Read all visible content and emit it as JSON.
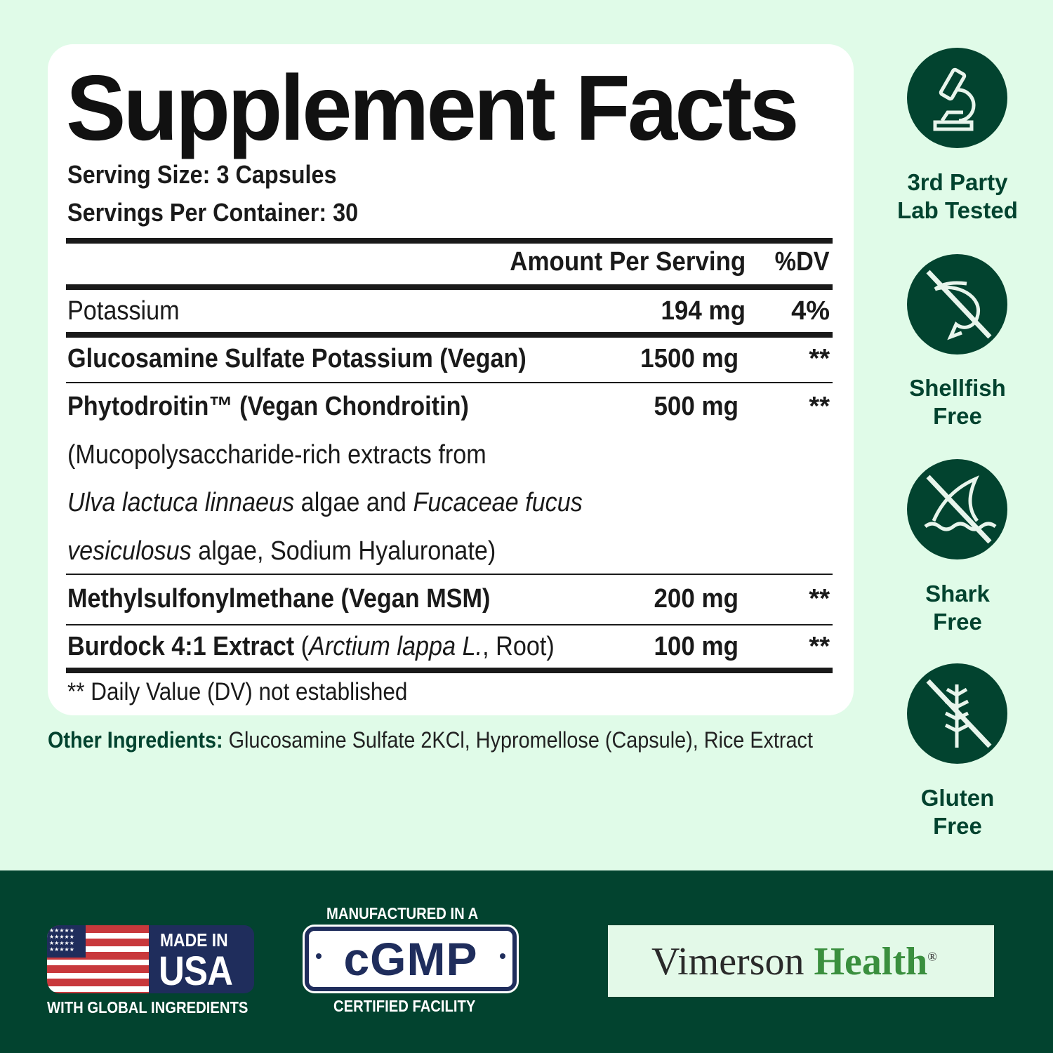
{
  "panel": {
    "title": "Supplement Facts",
    "serving_size": "Serving Size: 3 Capsules",
    "servings_per_container": "Servings Per Container: 30",
    "header_amount": "Amount Per Serving",
    "header_dv": "%DV",
    "rows": [
      {
        "name": "Potassium",
        "amount": "194 mg",
        "dv": "4%"
      },
      {
        "name": "Glucosamine Sulfate Potassium (Vegan)",
        "amount": "1500 mg",
        "dv": "**"
      },
      {
        "name": "Phytodroitin™ (Vegan Chondroitin)",
        "amount": "500 mg",
        "dv": "**"
      },
      {
        "name": "Methylsulfonylmethane (Vegan MSM)",
        "amount": "200 mg",
        "dv": "**"
      },
      {
        "name": "Burdock 4:1 Extract",
        "name_latin": "Arctium lappa L.",
        "name_part": "Root",
        "amount": "100 mg",
        "dv": "**"
      }
    ],
    "phyto_desc": {
      "line1": "(Mucopolysaccharide-rich extracts from",
      "latin1": "Ulva lactuca linnaeus",
      "mid": " algae and ",
      "latin2": "Fucaceae fucus",
      "latin3": "vesiculosus",
      "end": " algae, Sodium Hyaluronate)"
    },
    "footnote": "** Daily Value (DV) not established"
  },
  "other_ingredients": {
    "label": "Other Ingredients:",
    "value": " Glucosamine Sulfate 2KCl, Hypromellose (Capsule), Rice Extract"
  },
  "badges": [
    {
      "icon": "microscope-icon",
      "line1": "3rd Party",
      "line2": "Lab Tested"
    },
    {
      "icon": "shellfish-free-icon",
      "line1": "Shellfish",
      "line2": "Free"
    },
    {
      "icon": "shark-free-icon",
      "line1": "Shark",
      "line2": "Free"
    },
    {
      "icon": "gluten-free-icon",
      "line1": "Gluten",
      "line2": "Free"
    }
  ],
  "footer": {
    "usa_top": "MADE IN",
    "usa_big": "USA",
    "usa_bottom": "WITH GLOBAL INGREDIENTS",
    "cgmp_top": "MANUFACTURED IN A",
    "cgmp": "cGMP",
    "cgmp_bottom": "CERTIFIED FACILITY",
    "brand1": "Vimerson",
    "brand2": "Health",
    "brand_mark": "®"
  },
  "colors": {
    "background": "#e0fbe8",
    "brand_green": "#02432f",
    "accent_green": "#3a8f3e",
    "usa_blue": "#1f2d5c",
    "usa_red": "#c8383c"
  }
}
